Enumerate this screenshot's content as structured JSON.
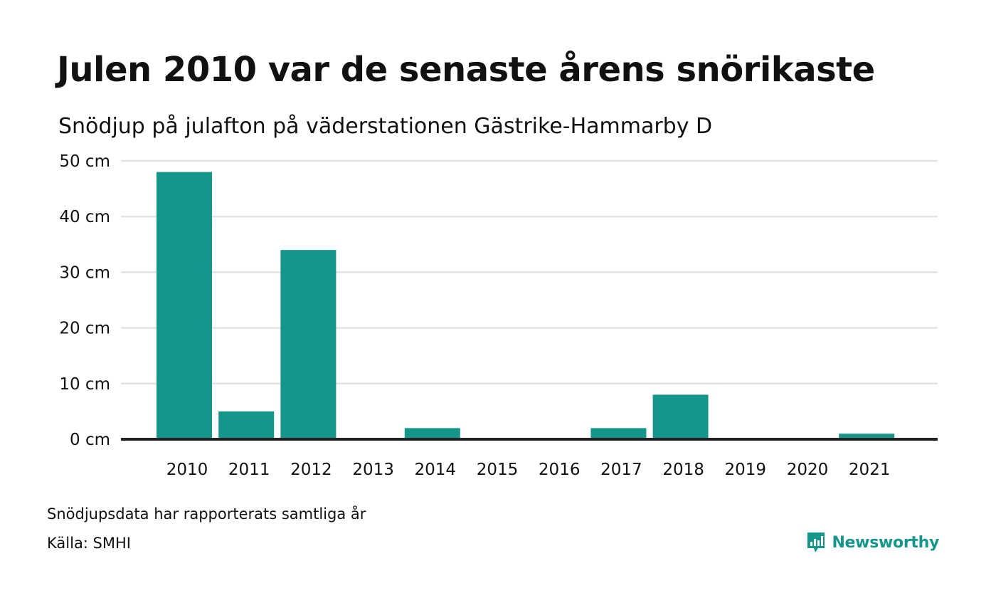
{
  "header": {
    "title": "Julen 2010 var de senaste årens snörikaste",
    "subtitle": "Snödjup på julafton på väderstationen Gästrike-Hammarby D"
  },
  "footer": {
    "note": "Snödjupsdata har rapporterats samtliga år",
    "source": "Källa: SMHI",
    "logo_text": "Newsworthy",
    "logo_icon": "bar-chart-speech-bubble-icon"
  },
  "colors": {
    "bar": "#15968a",
    "grid": "#e3e3e3",
    "baseline": "#222222",
    "brand": "#15968a"
  },
  "chart_data": {
    "type": "bar",
    "title": "Julen 2010 var de senaste årens snörikaste",
    "subtitle": "Snödjup på julafton på väderstationen Gästrike-Hammarby D",
    "categories": [
      "2010",
      "2011",
      "2012",
      "2013",
      "2014",
      "2015",
      "2016",
      "2017",
      "2018",
      "2019",
      "2020",
      "2021"
    ],
    "values": [
      48,
      5,
      34,
      0,
      2,
      0,
      0,
      2,
      8,
      0,
      0,
      1
    ],
    "unit": "cm",
    "ylim": [
      0,
      50
    ],
    "yticks": [
      0,
      10,
      20,
      30,
      40,
      50
    ],
    "ytick_labels": [
      "0 cm",
      "10 cm",
      "20 cm",
      "30 cm",
      "40 cm",
      "50 cm"
    ],
    "grid": true,
    "legend": "none"
  }
}
